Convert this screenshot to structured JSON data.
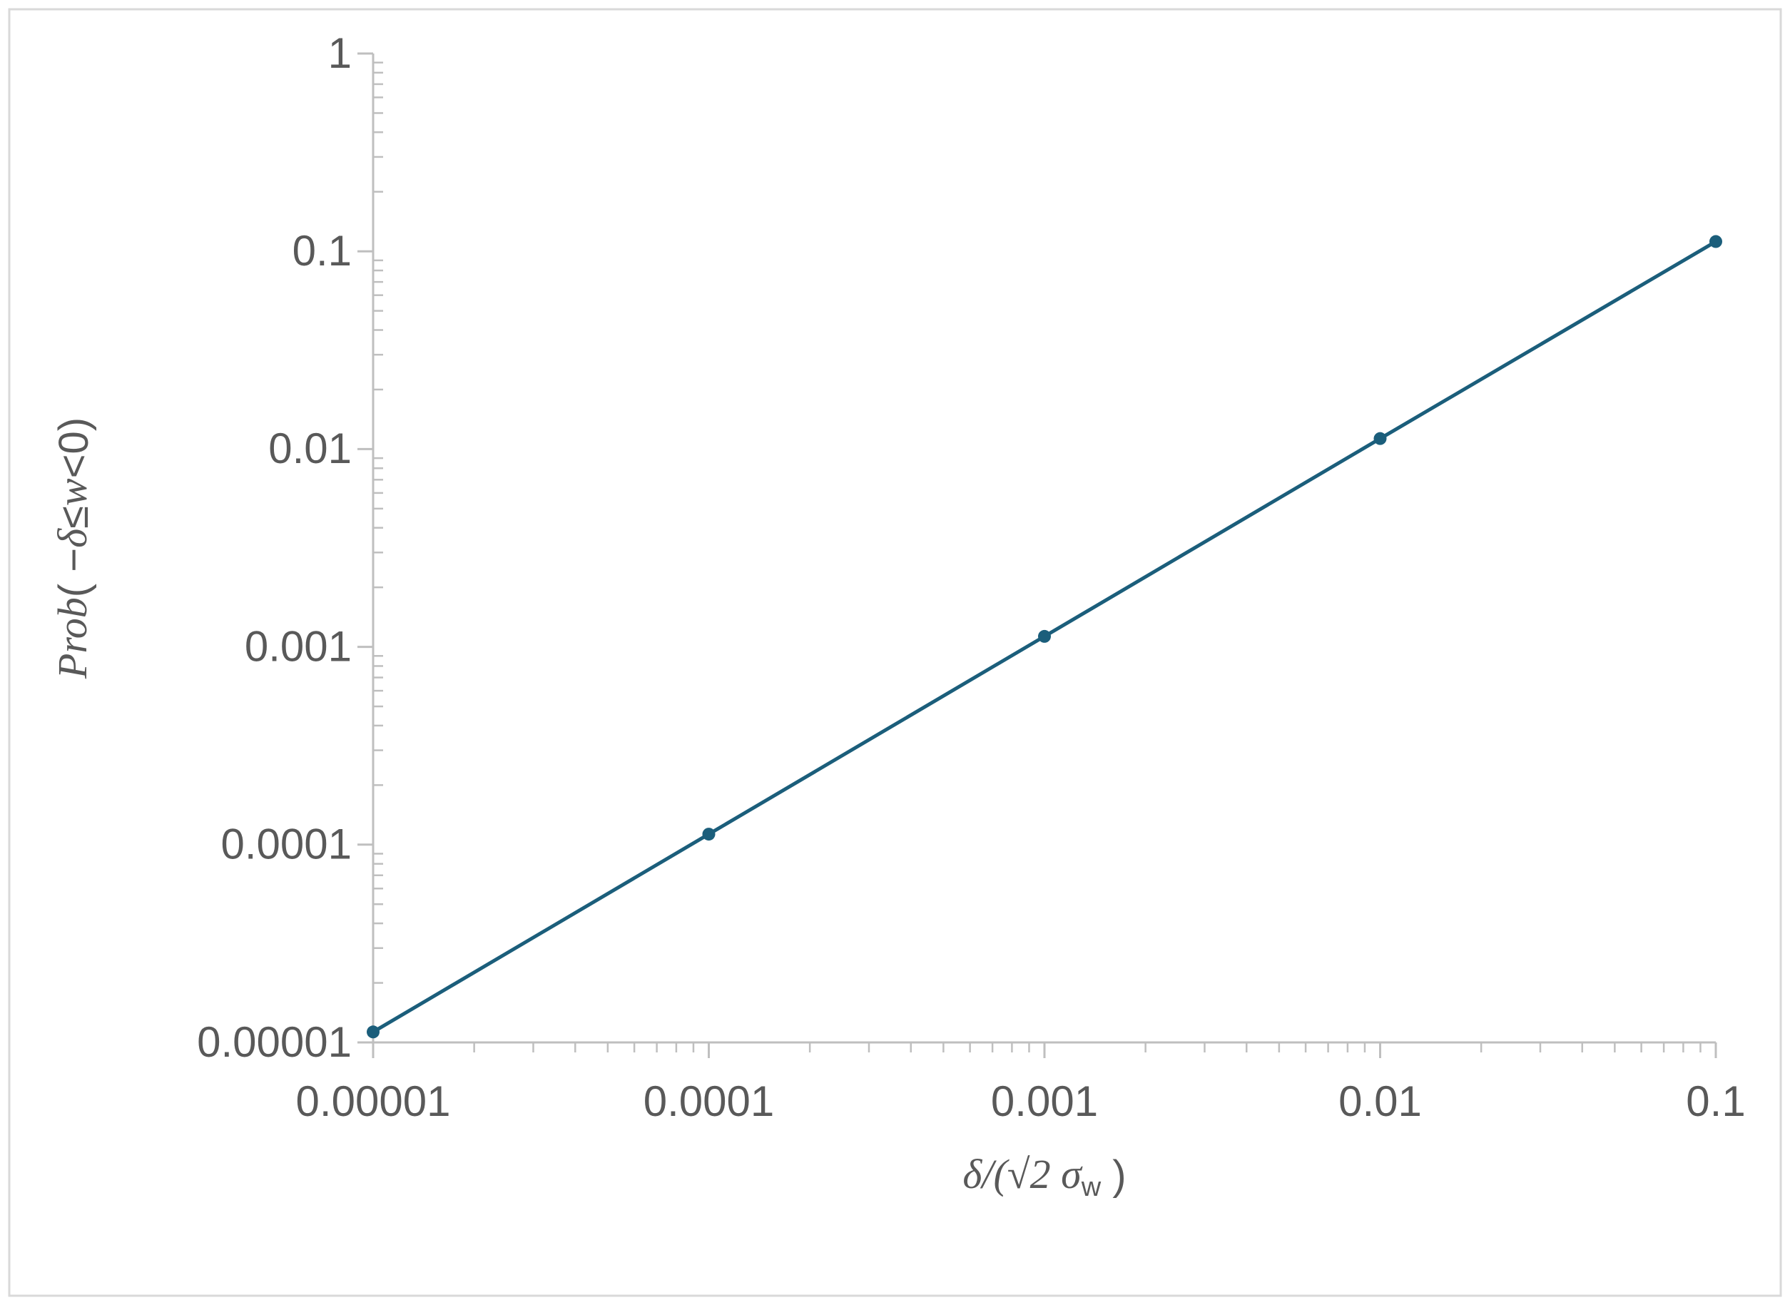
{
  "chart_data": {
    "type": "line",
    "x_label": [
      "δ/(√2 σ",
      "w",
      " )"
    ],
    "y_label": [
      "Prob",
      "( −",
      "δ",
      "≤",
      "w",
      "<0)"
    ],
    "x": [
      1e-05,
      0.0001,
      0.001,
      0.01,
      0.1
    ],
    "series": [
      {
        "color": "#1b5e7b",
        "values": [
          1.13e-05,
          0.000113,
          0.00113,
          0.0113,
          0.112
        ]
      }
    ],
    "xlim": [
      1e-05,
      0.1
    ],
    "ylim": [
      1e-05,
      1
    ],
    "xticks": [
      1e-05,
      0.0001,
      0.001,
      0.01,
      0.1
    ],
    "yticks": [
      1e-05,
      0.0001,
      0.001,
      0.01,
      0.1,
      1
    ],
    "xscale": "log",
    "yscale": "log",
    "grid": false
  }
}
